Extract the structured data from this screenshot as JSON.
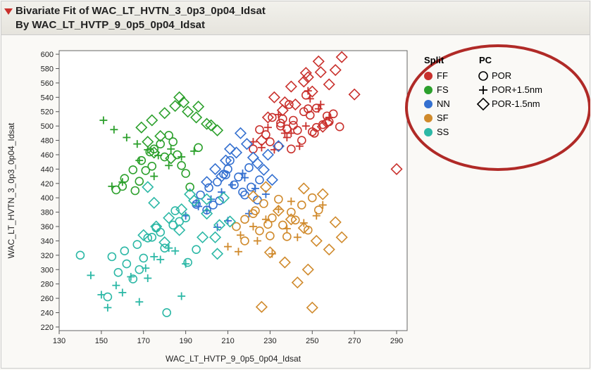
{
  "header": {
    "title_line1": "Bivariate Fit of WAC_LT_HVTN_3_0p3_0p04_Idsat",
    "title_line2": "By WAC_LT_HVTP_9_0p5_0p04_Idsat"
  },
  "chart": {
    "type": "scatter",
    "background_color": "#ffffff",
    "axis_color": "#555555",
    "tick_color": "#555555",
    "tick_fontsize": 11,
    "label_fontsize": 12,
    "font_family": "Arial",
    "xlabel": "WAC_LT_HVTP_9_0p5_0p04_Idsat",
    "ylabel": "WAC_LT_HVTN_3_0p3_0p04_Idsat",
    "xlim": [
      130,
      295
    ],
    "ylim": [
      215,
      605
    ],
    "xticks": [
      130,
      150,
      170,
      190,
      210,
      230,
      250,
      270,
      290
    ],
    "yticks": [
      220,
      240,
      260,
      280,
      300,
      320,
      340,
      360,
      380,
      400,
      420,
      440,
      460,
      480,
      500,
      520,
      540,
      560,
      580,
      600
    ],
    "legend": {
      "title1": "Split",
      "title2": "PC",
      "split_items": [
        {
          "label": "FF",
          "color": "#c9302c"
        },
        {
          "label": "FS",
          "color": "#2ca02c"
        },
        {
          "label": "NN",
          "color": "#3470d0"
        },
        {
          "label": "SF",
          "color": "#d08a2c"
        },
        {
          "label": "SS",
          "color": "#2cb8a6"
        }
      ],
      "pc_items": [
        {
          "label": "POR",
          "marker": "circle"
        },
        {
          "label": "POR+1.5nm",
          "marker": "plus"
        },
        {
          "label": "POR-1.5nm",
          "marker": "diamond"
        }
      ],
      "title_fontsize": 13,
      "item_fontsize": 13,
      "circle_color": "#c9302c",
      "circle_stroke": "#b02a27"
    },
    "colors": {
      "FF": "#c9302c",
      "FS": "#2ca02c",
      "NN": "#3470d0",
      "SF": "#d08a2c",
      "SS": "#2cb8a6"
    },
    "marker_size": 5.5,
    "series": [
      {
        "split": "FF",
        "pc": "circle",
        "x": [
          225,
          228,
          231,
          235,
          238,
          241,
          246,
          249,
          252,
          258,
          245,
          234,
          239,
          248,
          255,
          260,
          243,
          236,
          230,
          250,
          241,
          252,
          222,
          257,
          263,
          247,
          240,
          235,
          251
        ],
        "y": [
          495,
          488,
          512,
          504,
          496,
          508,
          520,
          515,
          498,
          506,
          480,
          472,
          530,
          524,
          502,
          517,
          494,
          510,
          478,
          492,
          501,
          525,
          468,
          514,
          499,
          543,
          468,
          500,
          490
        ]
      },
      {
        "split": "FF",
        "pc": "plus",
        "x": [
          222,
          229,
          234,
          240,
          247,
          253,
          258,
          244,
          238,
          249,
          226,
          254,
          232,
          248,
          237
        ],
        "y": [
          478,
          498,
          516,
          490,
          500,
          524,
          512,
          472,
          484,
          538,
          470,
          530,
          467,
          549,
          490
        ]
      },
      {
        "split": "FF",
        "pc": "diamond",
        "x": [
          232,
          240,
          248,
          254,
          258,
          264,
          250,
          242,
          236,
          229,
          261,
          246,
          270,
          290,
          253,
          255,
          247,
          237,
          257,
          226
        ],
        "y": [
          540,
          555,
          568,
          575,
          558,
          596,
          548,
          530,
          522,
          512,
          578,
          562,
          544,
          440,
          590,
          499,
          574,
          533,
          505,
          480
        ]
      },
      {
        "split": "FS",
        "pc": "circle",
        "x": [
          157,
          161,
          165,
          169,
          173,
          178,
          182,
          186,
          190,
          168,
          174,
          180,
          175,
          160,
          184,
          192,
          171,
          188,
          166,
          196
        ],
        "y": [
          411,
          427,
          439,
          452,
          464,
          475,
          487,
          460,
          434,
          423,
          444,
          457,
          468,
          416,
          478,
          415,
          438,
          445,
          410,
          470
        ]
      },
      {
        "split": "FS",
        "pc": "plus",
        "x": [
          151,
          156,
          162,
          167,
          172,
          177,
          183,
          188,
          160,
          175,
          155,
          182,
          194,
          168
        ],
        "y": [
          508,
          495,
          484,
          475,
          467,
          459,
          468,
          457,
          422,
          430,
          416,
          445,
          465,
          452
        ]
      },
      {
        "split": "FS",
        "pc": "diamond",
        "x": [
          169,
          174,
          180,
          185,
          191,
          195,
          200,
          205,
          187,
          178,
          172,
          196,
          202,
          175,
          189,
          183
        ],
        "y": [
          498,
          508,
          518,
          528,
          520,
          512,
          503,
          494,
          540,
          486,
          478,
          527,
          501,
          463,
          533,
          455
        ]
      },
      {
        "split": "NN",
        "pc": "circle",
        "x": [
          197,
          201,
          205,
          209,
          213,
          217,
          221,
          225,
          210,
          206,
          215,
          220,
          203,
          218,
          211,
          195,
          224,
          200,
          208
        ],
        "y": [
          404,
          414,
          422,
          432,
          418,
          408,
          415,
          425,
          440,
          396,
          429,
          442,
          390,
          404,
          452,
          391,
          397,
          383,
          433
        ]
      },
      {
        "split": "NN",
        "pc": "plus",
        "x": [
          190,
          196,
          202,
          207,
          212,
          218,
          223,
          228,
          200,
          210,
          195,
          220,
          205,
          217
        ],
        "y": [
          375,
          388,
          398,
          408,
          418,
          428,
          413,
          405,
          382,
          368,
          393,
          378,
          359,
          434
        ]
      },
      {
        "split": "NN",
        "pc": "diamond",
        "x": [
          204,
          209,
          214,
          219,
          224,
          229,
          234,
          207,
          216,
          222,
          200,
          227,
          211,
          231
        ],
        "y": [
          440,
          452,
          463,
          475,
          448,
          460,
          472,
          430,
          490,
          456,
          422,
          439,
          468,
          425
        ]
      },
      {
        "split": "SF",
        "pc": "circle",
        "x": [
          214,
          218,
          223,
          227,
          231,
          236,
          240,
          245,
          250,
          225,
          234,
          242,
          218,
          248,
          229,
          238,
          253,
          222,
          230
        ],
        "y": [
          360,
          370,
          382,
          392,
          372,
          362,
          380,
          390,
          400,
          354,
          398,
          369,
          340,
          355,
          363,
          346,
          383,
          378,
          347
        ]
      },
      {
        "split": "SF",
        "pc": "plus",
        "x": [
          210,
          216,
          222,
          228,
          234,
          240,
          246,
          252,
          224,
          238,
          215,
          243,
          255,
          231
        ],
        "y": [
          332,
          348,
          360,
          370,
          384,
          395,
          365,
          375,
          340,
          357,
          325,
          345,
          390,
          322
        ]
      },
      {
        "split": "SF",
        "pc": "diamond",
        "x": [
          222,
          228,
          234,
          240,
          246,
          252,
          258,
          264,
          237,
          248,
          230,
          255,
          261,
          243,
          226,
          250,
          246
        ],
        "y": [
          402,
          415,
          382,
          370,
          358,
          340,
          328,
          345,
          310,
          300,
          324,
          405,
          366,
          282,
          248,
          247,
          413
        ]
      },
      {
        "split": "SS",
        "pc": "circle",
        "x": [
          155,
          161,
          167,
          172,
          178,
          184,
          190,
          162,
          174,
          168,
          180,
          158,
          185,
          195,
          170,
          176,
          191,
          187,
          165,
          140,
          153,
          181
        ],
        "y": [
          318,
          326,
          335,
          344,
          352,
          362,
          372,
          308,
          345,
          300,
          330,
          296,
          382,
          328,
          316,
          358,
          310,
          367,
          287,
          320,
          262,
          240
        ]
      },
      {
        "split": "SS",
        "pc": "plus",
        "x": [
          150,
          157,
          164,
          171,
          178,
          185,
          145,
          168,
          175,
          182,
          160,
          190,
          153,
          172,
          188
        ],
        "y": [
          265,
          278,
          290,
          302,
          314,
          326,
          292,
          255,
          318,
          330,
          268,
          308,
          247,
          288,
          263
        ]
      },
      {
        "split": "SS",
        "pc": "diamond",
        "x": [
          170,
          176,
          182,
          188,
          194,
          200,
          206,
          180,
          192,
          198,
          175,
          205,
          187,
          172,
          211,
          200,
          208,
          204
        ],
        "y": [
          348,
          360,
          372,
          384,
          396,
          378,
          362,
          338,
          405,
          345,
          393,
          322,
          355,
          415,
          367,
          398,
          400,
          345
        ]
      }
    ]
  }
}
